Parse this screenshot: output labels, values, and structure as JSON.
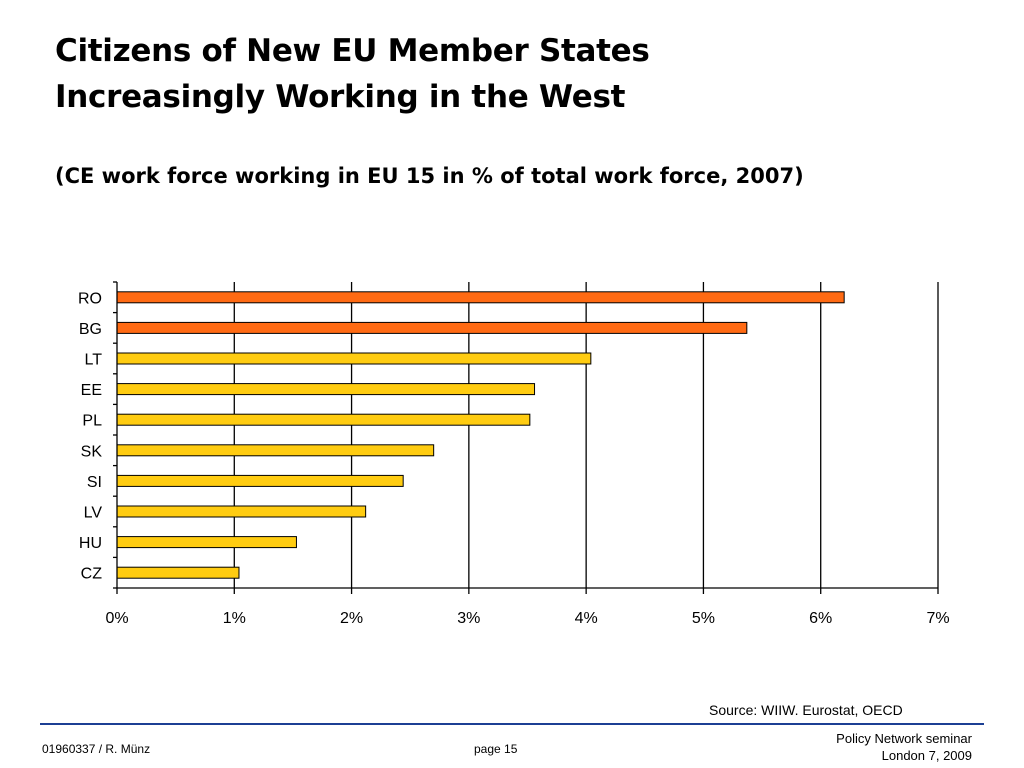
{
  "slide": {
    "title_line1": "Citizens of New EU Member States",
    "title_line2": "Increasingly Working in the West",
    "subtitle": "(CE work force working in EU 15 in % of total work force, 2007)",
    "source": "Source: WIIW. Eurostat, OECD",
    "footer_left": "01960337 / R. Münz",
    "footer_center": "page 15",
    "footer_right_line1": "Policy Network seminar",
    "footer_right_line2": "London 7, 2009"
  },
  "colors": {
    "highlight_bar": "#ff6a13",
    "default_bar": "#ffcc11",
    "bar_stroke": "#000000",
    "gridline": "#000000",
    "rule": "#1c3f94"
  },
  "chart_data": {
    "type": "bar",
    "orientation": "horizontal",
    "categories": [
      "RO",
      "BG",
      "LT",
      "EE",
      "PL",
      "SK",
      "SI",
      "LV",
      "HU",
      "CZ"
    ],
    "values": [
      6.2,
      5.37,
      4.04,
      3.56,
      3.52,
      2.7,
      2.44,
      2.12,
      1.53,
      1.04
    ],
    "highlighted": [
      "RO",
      "BG"
    ],
    "xlim": [
      0,
      7
    ],
    "xticks": [
      0,
      1,
      2,
      3,
      4,
      5,
      6,
      7
    ],
    "xtick_labels": [
      "0%",
      "1%",
      "2%",
      "3%",
      "4%",
      "5%",
      "6%",
      "7%"
    ],
    "grid": "vertical",
    "legend": "none"
  }
}
